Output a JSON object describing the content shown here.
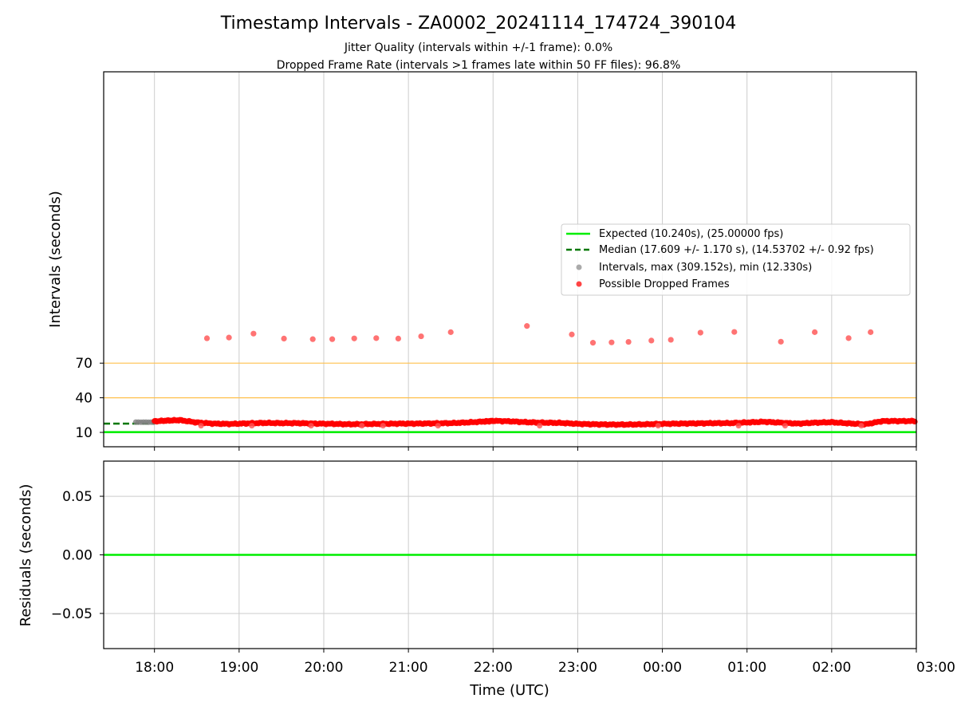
{
  "title": "Timestamp Intervals - ZA0002_20241114_174724_390104",
  "subtitle_line1": "Jitter Quality (intervals within +/-1 frame): 0.0%",
  "subtitle_line2": "Dropped Frame Rate (intervals >1 frames late within 50 FF files): 96.8%",
  "colors": {
    "expected": "#00ee00",
    "median": "#007700",
    "intervals": "#808080",
    "dropped": "#ff0000",
    "threshold": "#ffc04d",
    "grid": "#cccccc"
  },
  "chart_data": [
    {
      "type": "scatter",
      "ylabel": "Intervals (seconds)",
      "y_scale": "symlog-style (linear below ~70, compressed above)",
      "yticks": [
        "10",
        "40",
        "70"
      ],
      "grid": "vertical only",
      "threshold_lines": [
        40,
        70
      ],
      "legend_position": "right",
      "legend": [
        {
          "label": "Expected (10.240s), (25.00000 fps)",
          "kind": "solid-line",
          "color": "#00ee00"
        },
        {
          "label": "Median (17.609 +/- 1.170 s), (14.53702 +/- 0.92 fps)",
          "kind": "dashed-line",
          "color": "#007700"
        },
        {
          "label": "Intervals, max (309.152s), min (12.330s)",
          "kind": "dot",
          "color": "#999999"
        },
        {
          "label": "Possible Dropped Frames",
          "kind": "dot",
          "color": "#ff4444"
        }
      ],
      "expected_interval": 10.24,
      "median_interval": 17.609,
      "xlim_hours": [
        -0.6,
        9.0
      ],
      "series": [
        {
          "name": "Intervals, max (309.152s), min (12.330s)",
          "color": "#808080",
          "x_hours": [
            -0.22,
            -0.19,
            -0.16,
            -0.13,
            -0.1,
            -0.07,
            -0.04,
            -0.01
          ],
          "y": [
            18.9,
            18.9,
            18.8,
            18.9,
            18.9,
            18.8,
            18.9,
            18.9
          ]
        },
        {
          "name": "Possible Dropped Frames (outliers)",
          "color": "#ff4444",
          "x_hours": [
            0.62,
            0.88,
            1.17,
            1.53,
            1.87,
            2.1,
            2.36,
            2.62,
            2.88,
            3.15,
            3.5,
            4.4,
            4.93,
            5.18,
            5.4,
            5.6,
            5.87,
            6.1,
            6.45,
            6.85,
            7.4,
            7.8,
            8.2,
            8.46
          ],
          "y": [
            180,
            185,
            215,
            178,
            174,
            174,
            179,
            181,
            178,
            194,
            227,
            287,
            208,
            152,
            154,
            157,
            165,
            170,
            223,
            229,
            158,
            227,
            181,
            227
          ]
        },
        {
          "name": "Possible Dropped Frames (band anchors)",
          "color": "#ff0000",
          "x_hours": [
            0.0,
            0.15,
            0.3,
            0.5,
            0.7,
            0.9,
            1.1,
            1.3,
            1.5,
            1.7,
            1.9,
            2.1,
            2.3,
            2.5,
            2.7,
            2.9,
            3.1,
            3.3,
            3.5,
            3.7,
            3.9,
            4.0,
            4.2,
            4.4,
            4.6,
            4.8,
            5.0,
            5.2,
            5.4,
            5.6,
            5.8,
            6.0,
            6.2,
            6.4,
            6.6,
            6.8,
            7.0,
            7.2,
            7.4,
            7.6,
            7.8,
            8.0,
            8.2,
            8.4,
            8.6,
            8.8,
            9.0
          ],
          "y": [
            19.6,
            20.2,
            20.6,
            18.6,
            17.6,
            17.3,
            17.8,
            18.2,
            18.0,
            18.0,
            17.6,
            17.4,
            17.0,
            17.2,
            17.4,
            17.6,
            17.6,
            17.8,
            18.0,
            18.6,
            19.4,
            20.0,
            19.6,
            18.8,
            18.4,
            18.2,
            17.4,
            17.0,
            16.8,
            16.8,
            17.0,
            17.4,
            17.6,
            17.8,
            18.0,
            18.0,
            18.6,
            19.2,
            18.4,
            17.6,
            18.4,
            18.8,
            17.8,
            17.0,
            19.8,
            19.8,
            19.8
          ]
        }
      ]
    },
    {
      "type": "line",
      "xlabel": "Time (UTC)",
      "ylabel": "Residuals (seconds)",
      "ylim": [
        -0.08,
        0.08
      ],
      "yticks": [
        "0.05",
        "0.00",
        "−0.05"
      ],
      "grid": "on",
      "xticks": [
        "18:00",
        "19:00",
        "20:00",
        "21:00",
        "22:00",
        "23:00",
        "00:00",
        "01:00",
        "02:00",
        "03:00"
      ],
      "series": [
        {
          "name": "Expected (10.240s), (25.00000 fps)",
          "color": "#00ee00",
          "x_hours": [
            -0.6,
            9.0
          ],
          "y": [
            0.0,
            0.0
          ]
        }
      ]
    }
  ]
}
